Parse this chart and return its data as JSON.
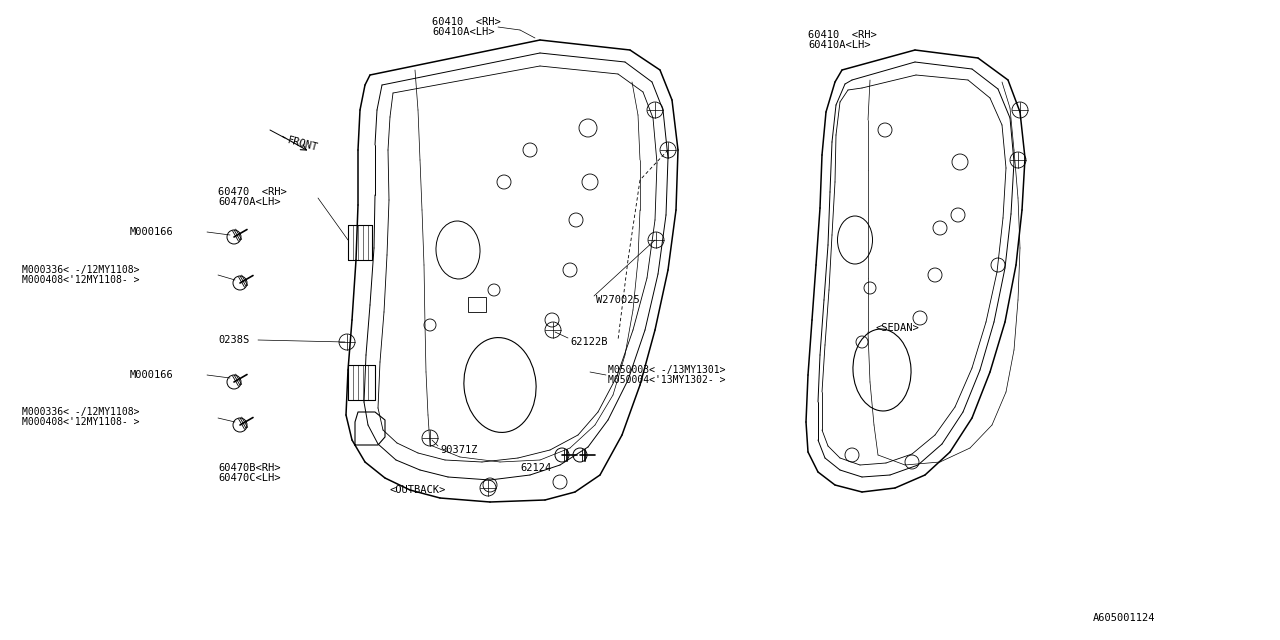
{
  "bg_color": "#ffffff",
  "line_color": "#000000",
  "font_color": "#000000",
  "font_family": "monospace",
  "font_size": 7.5,
  "diagram_id": "A605001124",
  "front_door_label1": "60410  <RH>",
  "front_door_label2": "60410A<LH>",
  "rear_door_label1": "60410  <RH>",
  "rear_door_label2": "60410A<LH>",
  "w270025": "W270025",
  "label_60470_1": "60470  <RH>",
  "label_60470_2": "60470A<LH>",
  "label_m000166": "M000166",
  "label_m000336_1": "M000336< -/12MY1108>",
  "label_m000408_1": "M000408<'12MY1108- >",
  "label_0238s": "0238S",
  "label_60470b_1": "60470B<RH>",
  "label_60470c_2": "60470C<LH>",
  "label_outback": "<OUTBACK>",
  "label_62122b": "62122B",
  "label_90371z": "90371Z",
  "label_62124": "62124",
  "label_m050003_1": "M050003< -/13MY1301>",
  "label_m050004_2": "M050004<'13MY1302- >",
  "label_sedan": "<SEDAN>",
  "label_front": "FRONT"
}
